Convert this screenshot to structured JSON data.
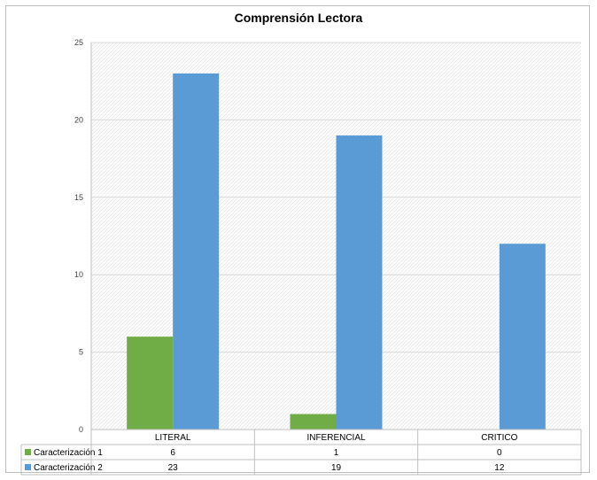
{
  "chart_data": {
    "type": "bar",
    "title": "Comprensión Lectora",
    "categories": [
      "LITERAL",
      "INFERENCIAL",
      "CRITICO"
    ],
    "series": [
      {
        "name": "Caracterización 1",
        "values": [
          6,
          1,
          0
        ],
        "color": "#70ad47"
      },
      {
        "name": "Caracterización 2",
        "values": [
          23,
          19,
          12
        ],
        "color": "#5b9bd5"
      }
    ],
    "ylim": [
      0,
      25
    ],
    "yticks": [
      0,
      5,
      10,
      15,
      20,
      25
    ],
    "grid": true,
    "data_table": true
  }
}
